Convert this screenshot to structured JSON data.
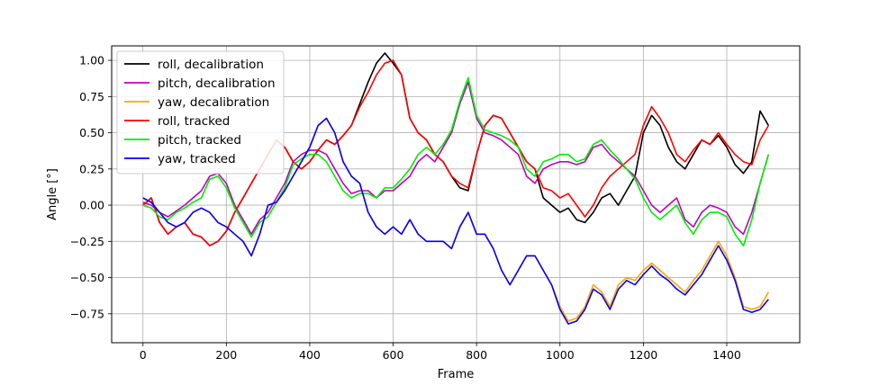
{
  "chart_data": {
    "type": "line",
    "title": "",
    "xlabel": "Frame",
    "ylabel": "Angle [°]",
    "xlim": [
      -75,
      1575
    ],
    "ylim": [
      -0.95,
      1.1
    ],
    "xticks": [
      0,
      200,
      400,
      600,
      800,
      1000,
      1200,
      1400
    ],
    "yticks": [
      -0.75,
      -0.5,
      -0.25,
      0.0,
      0.25,
      0.5,
      0.75,
      1.0
    ],
    "xtick_labels": [
      "0",
      "200",
      "400",
      "600",
      "800",
      "1000",
      "1200",
      "1400"
    ],
    "ytick_labels": [
      "−0.75",
      "−0.50",
      "−0.25",
      "0.00",
      "0.25",
      "0.50",
      "0.75",
      "1.00"
    ],
    "grid": true,
    "legend_position": "top-left",
    "x_step": 20,
    "series": [
      {
        "name": "roll, decalibration",
        "color": "#000000",
        "values": [
          0.0,
          0.05,
          -0.12,
          -0.2,
          -0.15,
          -0.12,
          -0.2,
          -0.22,
          -0.28,
          -0.25,
          -0.18,
          -0.05,
          0.05,
          0.15,
          0.25,
          0.35,
          0.45,
          0.4,
          0.3,
          0.25,
          0.3,
          0.38,
          0.45,
          0.42,
          0.48,
          0.55,
          0.7,
          0.85,
          0.98,
          1.05,
          0.98,
          0.9,
          0.6,
          0.5,
          0.45,
          0.35,
          0.3,
          0.2,
          0.12,
          0.1,
          0.35,
          0.55,
          0.62,
          0.6,
          0.5,
          0.4,
          0.3,
          0.25,
          0.05,
          0.0,
          -0.05,
          -0.02,
          -0.1,
          -0.12,
          -0.05,
          0.05,
          0.08,
          0.0,
          0.1,
          0.2,
          0.5,
          0.62,
          0.55,
          0.4,
          0.3,
          0.25,
          0.35,
          0.45,
          0.42,
          0.48,
          0.4,
          0.28,
          0.22,
          0.3,
          0.65,
          0.55
        ]
      },
      {
        "name": "pitch, decalibration",
        "color": "#bf00bf",
        "values": [
          0.02,
          0.0,
          -0.05,
          -0.08,
          -0.04,
          0.0,
          0.05,
          0.1,
          0.2,
          0.22,
          0.15,
          0.0,
          -0.1,
          -0.2,
          -0.1,
          -0.05,
          0.05,
          0.15,
          0.3,
          0.35,
          0.38,
          0.38,
          0.35,
          0.25,
          0.15,
          0.08,
          0.1,
          0.1,
          0.05,
          0.1,
          0.1,
          0.15,
          0.2,
          0.3,
          0.35,
          0.3,
          0.4,
          0.5,
          0.7,
          0.85,
          0.6,
          0.5,
          0.48,
          0.45,
          0.4,
          0.35,
          0.2,
          0.15,
          0.25,
          0.28,
          0.3,
          0.3,
          0.28,
          0.3,
          0.4,
          0.42,
          0.35,
          0.3,
          0.25,
          0.2,
          0.1,
          0.0,
          -0.05,
          0.0,
          0.05,
          -0.1,
          -0.15,
          -0.05,
          0.0,
          -0.02,
          -0.05,
          -0.15,
          -0.2,
          -0.05,
          0.15,
          0.35
        ]
      },
      {
        "name": "yaw, decalibration",
        "color": "#ffa500",
        "values": [
          0.05,
          0.02,
          -0.05,
          -0.12,
          -0.15,
          -0.12,
          -0.05,
          -0.02,
          -0.05,
          -0.12,
          -0.15,
          -0.2,
          -0.25,
          -0.35,
          -0.2,
          0.0,
          0.02,
          0.1,
          0.2,
          0.3,
          0.4,
          0.55,
          0.6,
          0.5,
          0.3,
          0.2,
          0.15,
          -0.05,
          -0.15,
          -0.2,
          -0.15,
          -0.2,
          -0.1,
          -0.2,
          -0.25,
          -0.25,
          -0.25,
          -0.3,
          -0.15,
          -0.05,
          -0.2,
          -0.2,
          -0.3,
          -0.45,
          -0.55,
          -0.45,
          -0.35,
          -0.35,
          -0.45,
          -0.55,
          -0.7,
          -0.8,
          -0.78,
          -0.7,
          -0.55,
          -0.6,
          -0.7,
          -0.55,
          -0.5,
          -0.52,
          -0.45,
          -0.4,
          -0.45,
          -0.5,
          -0.55,
          -0.6,
          -0.52,
          -0.45,
          -0.35,
          -0.25,
          -0.35,
          -0.5,
          -0.7,
          -0.72,
          -0.7,
          -0.6
        ]
      },
      {
        "name": "roll, tracked",
        "color": "#ff0000",
        "values": [
          0.0,
          0.05,
          -0.12,
          -0.2,
          -0.15,
          -0.12,
          -0.2,
          -0.22,
          -0.28,
          -0.25,
          -0.18,
          -0.05,
          0.05,
          0.15,
          0.25,
          0.35,
          0.45,
          0.4,
          0.3,
          0.25,
          0.3,
          0.38,
          0.45,
          0.42,
          0.48,
          0.55,
          0.68,
          0.78,
          0.9,
          0.98,
          1.0,
          0.9,
          0.6,
          0.5,
          0.45,
          0.35,
          0.3,
          0.2,
          0.15,
          0.12,
          0.35,
          0.55,
          0.62,
          0.6,
          0.5,
          0.4,
          0.3,
          0.25,
          0.12,
          0.1,
          0.05,
          0.08,
          0.0,
          -0.08,
          0.0,
          0.12,
          0.2,
          0.25,
          0.3,
          0.35,
          0.55,
          0.68,
          0.6,
          0.5,
          0.35,
          0.3,
          0.38,
          0.45,
          0.42,
          0.5,
          0.42,
          0.35,
          0.3,
          0.28,
          0.45,
          0.55
        ]
      },
      {
        "name": "pitch, tracked",
        "color": "#00ee00",
        "values": [
          0.0,
          -0.02,
          -0.08,
          -0.1,
          -0.05,
          -0.02,
          0.02,
          0.05,
          0.18,
          0.2,
          0.12,
          -0.02,
          -0.12,
          -0.22,
          -0.12,
          -0.08,
          0.02,
          0.12,
          0.28,
          0.32,
          0.35,
          0.35,
          0.3,
          0.2,
          0.1,
          0.05,
          0.08,
          0.08,
          0.05,
          0.12,
          0.12,
          0.18,
          0.25,
          0.35,
          0.4,
          0.35,
          0.42,
          0.52,
          0.72,
          0.88,
          0.62,
          0.52,
          0.5,
          0.48,
          0.45,
          0.4,
          0.25,
          0.2,
          0.3,
          0.32,
          0.35,
          0.35,
          0.3,
          0.32,
          0.42,
          0.45,
          0.38,
          0.32,
          0.25,
          0.18,
          0.05,
          -0.05,
          -0.1,
          -0.05,
          0.0,
          -0.12,
          -0.2,
          -0.1,
          -0.05,
          -0.05,
          -0.08,
          -0.2,
          -0.28,
          -0.1,
          0.15,
          0.35
        ]
      },
      {
        "name": "yaw, tracked",
        "color": "#0000ff",
        "values": [
          0.05,
          0.02,
          -0.05,
          -0.12,
          -0.15,
          -0.12,
          -0.05,
          -0.02,
          -0.05,
          -0.12,
          -0.15,
          -0.2,
          -0.25,
          -0.35,
          -0.2,
          0.0,
          0.02,
          0.1,
          0.2,
          0.3,
          0.4,
          0.55,
          0.6,
          0.5,
          0.3,
          0.2,
          0.15,
          -0.05,
          -0.15,
          -0.2,
          -0.15,
          -0.2,
          -0.1,
          -0.2,
          -0.25,
          -0.25,
          -0.25,
          -0.3,
          -0.15,
          -0.05,
          -0.2,
          -0.2,
          -0.3,
          -0.45,
          -0.55,
          -0.45,
          -0.35,
          -0.35,
          -0.45,
          -0.55,
          -0.72,
          -0.82,
          -0.8,
          -0.72,
          -0.58,
          -0.62,
          -0.72,
          -0.58,
          -0.52,
          -0.55,
          -0.48,
          -0.42,
          -0.48,
          -0.52,
          -0.58,
          -0.62,
          -0.55,
          -0.48,
          -0.38,
          -0.28,
          -0.38,
          -0.52,
          -0.72,
          -0.74,
          -0.72,
          -0.65
        ]
      }
    ]
  }
}
